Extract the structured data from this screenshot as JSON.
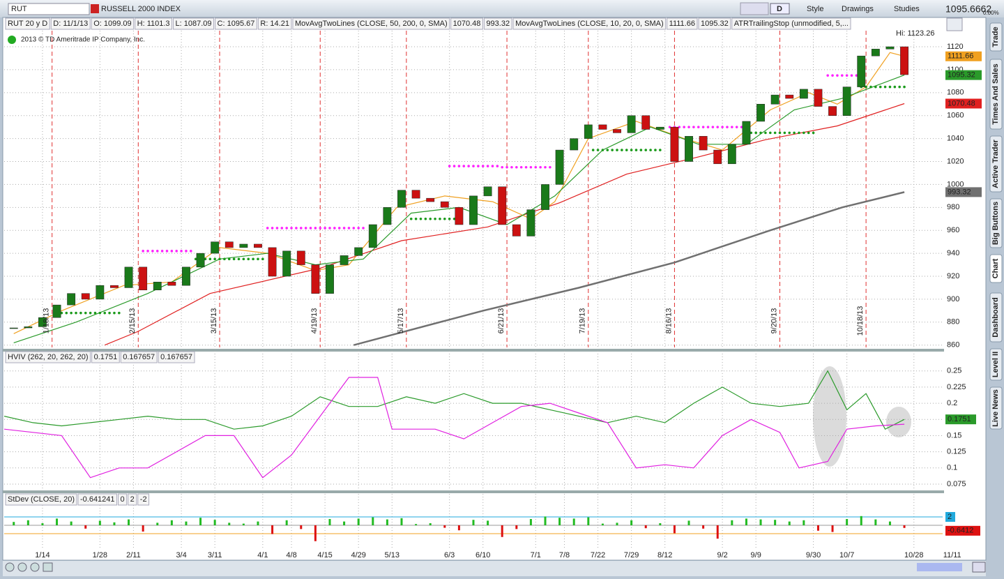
{
  "toolbar": {
    "symbol": "RUT",
    "description": "RUSSELL 2000 INDEX",
    "aggregation": "D",
    "buttons": [
      "Style",
      "Drawings",
      "Studies"
    ],
    "last": "1095.6662",
    "change": "0.00%"
  },
  "info_bar": {
    "chart": "RUT 20 y D",
    "fields": [
      "D: 11/1/13",
      "O: 1099.09",
      "H: 1101.3",
      "L: 1087.09",
      "C: 1095.67",
      "R: 14.21"
    ],
    "studies": [
      {
        "label": "MovAvgTwoLines (CLOSE, 50, 200, 0, SMA)",
        "label_color": "#dd1111",
        "values": [
          "1070.48",
          "993.32"
        ],
        "colors": [
          "#dd1111",
          "#666666"
        ]
      },
      {
        "label": "MovAvgTwoLines (CLOSE, 10, 20, 0, SMA)",
        "label_color": "#f0a020",
        "values": [
          "1111.66",
          "1095.32"
        ],
        "colors": [
          "#e08a00",
          "#1a8a1a"
        ]
      },
      {
        "label": "ATRTrailingStop (unmodified, 5,...",
        "label_color": "#1a8a1a"
      }
    ]
  },
  "copyright": "2013 © TD Ameritrade IP Company, Inc.",
  "side_tabs": [
    "Trade",
    "Times And Sales",
    "Active Trader",
    "Big Buttons",
    "Chart",
    "Dashboard",
    "Level II",
    "Live News"
  ],
  "chart_data": [
    {
      "type": "candlestick",
      "up_color": "#1a7a1a",
      "down_color": "#cc1111",
      "high_label": "Hi: 1123.26",
      "x": [
        2,
        5,
        8,
        11,
        14,
        17,
        20,
        23,
        26,
        29,
        32,
        35,
        38,
        41,
        44,
        47,
        50,
        53,
        56,
        59,
        62,
        65,
        68,
        71,
        74,
        77,
        80,
        83,
        86,
        89,
        92,
        95,
        98,
        101,
        104,
        107,
        110,
        113,
        116,
        119,
        122,
        125,
        128,
        131,
        134,
        137,
        140,
        143,
        146,
        149,
        152,
        155,
        158,
        161,
        164,
        167,
        170,
        173,
        176,
        179,
        182,
        185,
        188
      ],
      "close": [
        875,
        876,
        884,
        895,
        905,
        900,
        912,
        910,
        928,
        908,
        915,
        912,
        928,
        940,
        950,
        945,
        948,
        945,
        920,
        942,
        930,
        905,
        930,
        938,
        945,
        965,
        980,
        995,
        988,
        985,
        980,
        965,
        990,
        998,
        965,
        955,
        978,
        1000,
        1030,
        1040,
        1052,
        1048,
        1045,
        1060,
        1048,
        1050,
        1020,
        1042,
        1030,
        1018,
        1035,
        1055,
        1070,
        1078,
        1075,
        1083,
        1068,
        1060,
        1085,
        1112,
        1118,
        1120,
        1095.67
      ],
      "overlays": [
        {
          "color": "#e02020",
          "width": 1.2,
          "x": [
            21,
            28,
            43,
            66,
            83,
            101,
            116,
            130,
            145,
            159,
            174,
            188
          ],
          "values": [
            860,
            872,
            905,
            927,
            951,
            963,
            984,
            1009,
            1024,
            1039,
            1051,
            1070.48
          ]
        },
        {
          "color": "#707070",
          "width": 2.5,
          "x": [
            73,
            100,
            120,
            140,
            160,
            175,
            188
          ],
          "values": [
            860,
            890,
            910,
            932,
            960,
            980,
            993.32
          ]
        },
        {
          "color": "#f0a020",
          "width": 1.2,
          "x": [
            2,
            12,
            25,
            35,
            45,
            55,
            65,
            72,
            82,
            92,
            102,
            110,
            115,
            122,
            132,
            142,
            150,
            160,
            168,
            174,
            180,
            185,
            188
          ],
          "values": [
            870,
            890,
            912,
            915,
            945,
            940,
            925,
            930,
            980,
            990,
            985,
            970,
            985,
            1040,
            1055,
            1040,
            1030,
            1065,
            1080,
            1070,
            1085,
            1115,
            1111.66
          ]
        },
        {
          "color": "#2a9a2a",
          "width": 1.2,
          "x": [
            2,
            15,
            30,
            45,
            55,
            65,
            75,
            85,
            95,
            105,
            115,
            125,
            135,
            145,
            155,
            165,
            175,
            188
          ],
          "values": [
            862,
            880,
            905,
            935,
            940,
            930,
            935,
            975,
            980,
            965,
            990,
            1030,
            1050,
            1035,
            1035,
            1065,
            1075,
            1095.32
          ]
        }
      ],
      "stops": [
        {
          "from": 12,
          "to": 24,
          "value": 888,
          "color": "#1a9a1a"
        },
        {
          "from": 29,
          "to": 39,
          "value": 942,
          "color": "#ff22ff"
        },
        {
          "from": 40,
          "to": 54,
          "value": 935,
          "color": "#1a9a1a"
        },
        {
          "from": 55,
          "to": 75,
          "value": 962,
          "color": "#ff22ff"
        },
        {
          "from": 85,
          "to": 95,
          "value": 970,
          "color": "#1a9a1a"
        },
        {
          "from": 93,
          "to": 103,
          "value": 1016,
          "color": "#ff22ff"
        },
        {
          "from": 104,
          "to": 114,
          "value": 1015,
          "color": "#ff22ff"
        },
        {
          "from": 123,
          "to": 137,
          "value": 1030,
          "color": "#1a9a1a"
        },
        {
          "from": 139,
          "to": 155,
          "value": 1050,
          "color": "#ff22ff"
        },
        {
          "from": 156,
          "to": 169,
          "value": 1045,
          "color": "#1a9a1a"
        },
        {
          "from": 172,
          "to": 178,
          "value": 1095,
          "color": "#ff22ff"
        },
        {
          "from": 179,
          "to": 188,
          "value": 1085,
          "color": "#1a9a1a"
        }
      ],
      "expirations": {
        "x": [
          10,
          28,
          45,
          66,
          84,
          105,
          122,
          140,
          162,
          180
        ],
        "labels": [
          "1/18/13",
          "2/15/13",
          "3/15/13",
          "4/19/13",
          "5/17/13",
          "6/21/13",
          "7/19/13",
          "8/16/13",
          "9/20/13",
          "10/18/13"
        ]
      },
      "xlim": [
        0,
        196
      ],
      "ylim": [
        858,
        1134
      ],
      "yticks": [
        860,
        880,
        900,
        920,
        940,
        960,
        980,
        1000,
        1020,
        1040,
        1060,
        1080,
        1100,
        1120
      ],
      "grid": true
    },
    {
      "type": "line",
      "title": "HVIV (262, 20, 262, 20)",
      "header_values": [
        "0.1751",
        "0.167657",
        "0.167657"
      ],
      "header_colors": [
        "#1a8a1a",
        "#d020d0",
        "#d020d0"
      ],
      "series": [
        {
          "color": "#2a9a2a",
          "x": [
            0,
            6,
            12,
            18,
            24,
            30,
            36,
            42,
            48,
            54,
            60,
            66,
            72,
            78,
            84,
            90,
            96,
            102,
            108,
            114,
            120,
            126,
            132,
            138,
            144,
            150,
            156,
            162,
            168,
            172,
            176,
            180,
            184,
            188
          ],
          "values": [
            0.18,
            0.17,
            0.165,
            0.17,
            0.175,
            0.18,
            0.175,
            0.175,
            0.16,
            0.165,
            0.18,
            0.21,
            0.195,
            0.195,
            0.21,
            0.2,
            0.215,
            0.2,
            0.2,
            0.19,
            0.18,
            0.17,
            0.18,
            0.17,
            0.2,
            0.225,
            0.2,
            0.195,
            0.2,
            0.25,
            0.19,
            0.215,
            0.16,
            0.1751
          ]
        },
        {
          "color": "#e020e0",
          "x": [
            0,
            6,
            12,
            18,
            24,
            30,
            36,
            42,
            48,
            54,
            60,
            66,
            72,
            78,
            81,
            90,
            96,
            102,
            108,
            114,
            120,
            126,
            132,
            138,
            144,
            150,
            156,
            162,
            166,
            172,
            176,
            182,
            188
          ],
          "values": [
            0.16,
            0.155,
            0.15,
            0.085,
            0.1,
            0.1,
            0.125,
            0.15,
            0.15,
            0.085,
            0.12,
            0.18,
            0.24,
            0.24,
            0.16,
            0.16,
            0.145,
            0.17,
            0.195,
            0.2,
            0.185,
            0.17,
            0.1,
            0.105,
            0.1,
            0.15,
            0.175,
            0.155,
            0.1,
            0.11,
            0.16,
            0.165,
            0.167657
          ]
        }
      ],
      "last_label": "0.1751",
      "xlim": [
        0,
        196
      ],
      "ylim": [
        0.0685,
        0.281
      ],
      "yticks": [
        0.075,
        0.1,
        0.125,
        0.15,
        0.175,
        0.2,
        0.225,
        0.25
      ],
      "grid": true
    },
    {
      "type": "bar",
      "title": "StDev (CLOSE, 20)",
      "header_value": "-0.641241",
      "up_color": "#22bb22",
      "down_color": "#dd1111",
      "x": [
        2,
        5,
        8,
        11,
        14,
        17,
        20,
        23,
        26,
        29,
        32,
        35,
        38,
        41,
        44,
        47,
        50,
        53,
        56,
        59,
        62,
        65,
        68,
        71,
        74,
        77,
        80,
        83,
        86,
        89,
        92,
        95,
        98,
        101,
        104,
        107,
        110,
        113,
        116,
        119,
        122,
        125,
        128,
        131,
        134,
        137,
        140,
        143,
        146,
        149,
        152,
        155,
        158,
        161,
        164,
        167,
        170,
        173,
        176,
        179,
        182,
        185,
        188
      ],
      "values": [
        0.8,
        1.2,
        0.5,
        1.6,
        0.9,
        -0.8,
        1.1,
        0.7,
        1.4,
        -1.5,
        0.6,
        1.2,
        0.9,
        1.8,
        1.3,
        0.6,
        0.4,
        0.9,
        -2.1,
        1.2,
        -0.9,
        -3.8,
        1.5,
        0.9,
        1.6,
        1.9,
        1.4,
        1.7,
        0.3,
        0.5,
        -0.6,
        -1.2,
        1.3,
        1.1,
        -2.8,
        -0.9,
        1.5,
        2.1,
        1.8,
        1.6,
        1.9,
        0.4,
        0.6,
        1.2,
        -0.7,
        0.5,
        -1.9,
        1.1,
        -0.8,
        -3.2,
        1.2,
        1.6,
        1.4,
        1.3,
        0.9,
        1.2,
        -1.3,
        -1.6,
        1.5,
        2.2,
        1.4,
        0.9,
        -0.641241
      ],
      "levels": [
        {
          "value": 0,
          "color": "#999999"
        },
        {
          "value": 2,
          "color": "#22aadd"
        },
        {
          "value": -2,
          "color": "#f0a020"
        }
      ],
      "last_label": "-0.6412",
      "xlim": [
        0,
        196
      ],
      "ylim": [
        -5.67,
        7.5
      ],
      "xticks": [
        {
          "value": 8,
          "label": "1/14"
        },
        {
          "value": 20,
          "label": "1/28"
        },
        {
          "value": 27,
          "label": "2/11"
        },
        {
          "value": 37,
          "label": "3/4"
        },
        {
          "value": 44,
          "label": "3/11"
        },
        {
          "value": 54,
          "label": "4/1"
        },
        {
          "value": 60,
          "label": "4/8"
        },
        {
          "value": 67,
          "label": "4/15"
        },
        {
          "value": 74,
          "label": "4/29"
        },
        {
          "value": 81,
          "label": "5/13"
        },
        {
          "value": 93,
          "label": "6/3"
        },
        {
          "value": 100,
          "label": "6/10"
        },
        {
          "value": 111,
          "label": "7/1"
        },
        {
          "value": 117,
          "label": "7/8"
        },
        {
          "value": 124,
          "label": "7/22"
        },
        {
          "value": 131,
          "label": "7/29"
        },
        {
          "value": 138,
          "label": "8/12"
        },
        {
          "value": 150,
          "label": "9/2"
        },
        {
          "value": 157,
          "label": "9/9"
        },
        {
          "value": 169,
          "label": "9/30"
        },
        {
          "value": 176,
          "label": "10/7"
        },
        {
          "value": 190,
          "label": "10/28"
        },
        {
          "value": 198,
          "label": "11/11"
        }
      ]
    }
  ]
}
